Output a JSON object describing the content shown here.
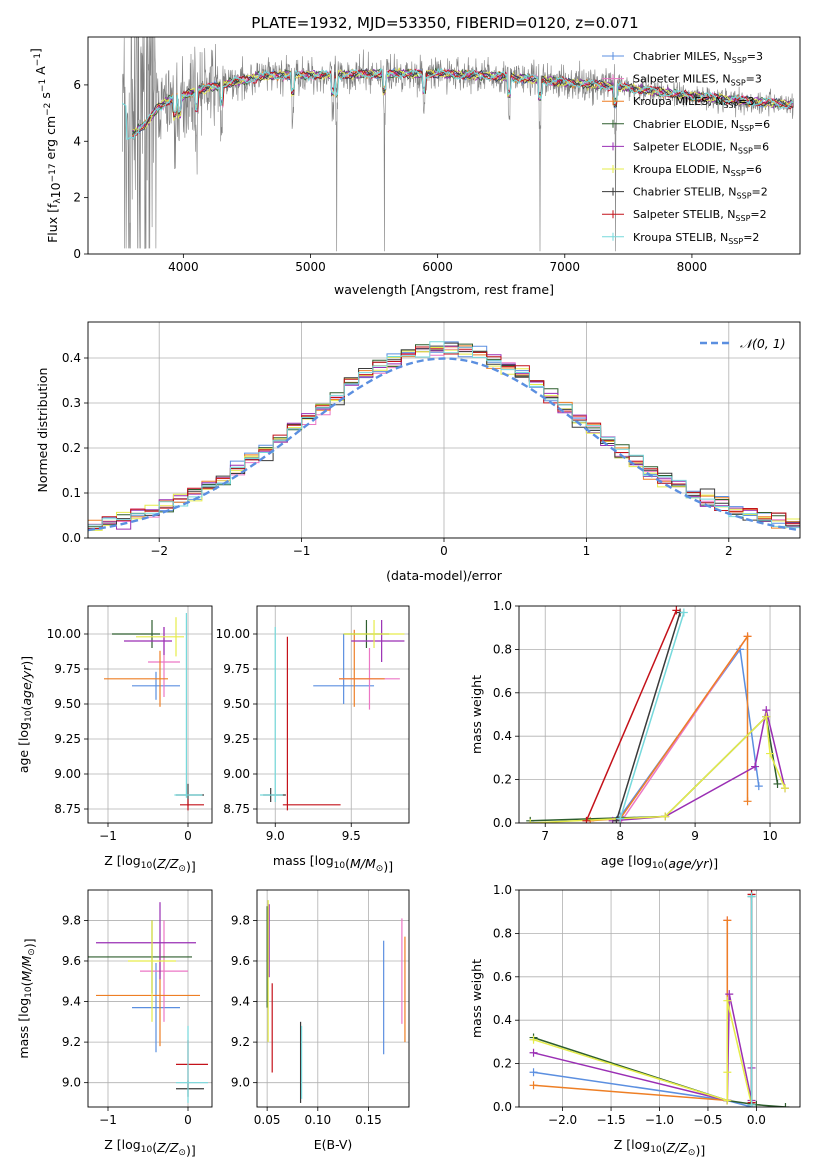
{
  "figure": {
    "title": "PLATE=1932, MJD=53350, FIBERID=0120, z=0.071",
    "models": [
      {
        "label": "Chabrier MILES, N",
        "sub": "SSP",
        "suffix": "=3",
        "color": "#5b8fe0"
      },
      {
        "label": "Salpeter MILES, N",
        "sub": "SSP",
        "suffix": "=3",
        "color": "#ec77c5"
      },
      {
        "label": "Kroupa MILES, N",
        "sub": "SSP",
        "suffix": "=3",
        "color": "#ee7f25"
      },
      {
        "label": "Chabrier ELODIE, N",
        "sub": "SSP",
        "suffix": "=6",
        "color": "#2e5e2e"
      },
      {
        "label": "Salpeter ELODIE, N",
        "sub": "SSP",
        "suffix": "=6",
        "color": "#9a2fb4"
      },
      {
        "label": "Kroupa ELODIE, N",
        "sub": "SSP",
        "suffix": "=6",
        "color": "#e6ec4a"
      },
      {
        "label": "Chabrier STELIB, N",
        "sub": "SSP",
        "suffix": "=2",
        "color": "#3a3a3a"
      },
      {
        "label": "Salpeter STELIB, N",
        "sub": "SSP",
        "suffix": "=2",
        "color": "#c4121a"
      },
      {
        "label": "Kroupa STELIB, N",
        "sub": "SSP",
        "suffix": "=2",
        "color": "#76d9dc"
      }
    ],
    "data_color": "#808080"
  },
  "chart_data": [
    {
      "id": "spectrum",
      "type": "line",
      "xlabel": "wavelength [Angstrom, rest frame]",
      "ylabel": "Flux [f",
      "ylabel_parts": [
        "Flux [f",
        "λ",
        "10",
        "−17",
        " erg cm",
        "−2",
        " s",
        "−1",
        " A",
        "−1",
        "]"
      ],
      "xlim": [
        3250,
        8850
      ],
      "ylim": [
        0,
        7.7
      ],
      "xticks": [
        4000,
        5000,
        6000,
        7000,
        8000
      ],
      "yticks": [
        0,
        2,
        4,
        6
      ],
      "continuum": [
        [
          3550,
          4.1
        ],
        [
          3700,
          4.6
        ],
        [
          3800,
          5.2
        ],
        [
          3900,
          5.5
        ],
        [
          4000,
          5.6
        ],
        [
          4100,
          5.8
        ],
        [
          4200,
          5.9
        ],
        [
          4400,
          6.1
        ],
        [
          4600,
          6.3
        ],
        [
          4800,
          6.35
        ],
        [
          5000,
          6.35
        ],
        [
          5200,
          6.35
        ],
        [
          5500,
          6.4
        ],
        [
          6000,
          6.4
        ],
        [
          6500,
          6.3
        ],
        [
          7000,
          6.1
        ],
        [
          7500,
          5.9
        ],
        [
          8000,
          5.6
        ],
        [
          8500,
          5.4
        ],
        [
          8800,
          5.3
        ]
      ],
      "absorption_lines": [
        3934,
        3969,
        4102,
        4300,
        4861,
        5175,
        5207,
        5581,
        5893,
        6563,
        6806,
        7399
      ]
    },
    {
      "id": "residuals",
      "type": "histogram",
      "xlabel": "(data-model)/error",
      "ylabel": "Normed distribution",
      "xlim": [
        -2.5,
        2.5
      ],
      "ylim": [
        0,
        0.48
      ],
      "xticks": [
        -2,
        -1,
        0,
        1,
        2
      ],
      "yticks": [
        0.0,
        0.1,
        0.2,
        0.3,
        0.4
      ],
      "bin_width": 0.1,
      "legend": "N(0,1)"
    },
    {
      "id": "age-vs-Z",
      "type": "errorbar",
      "xlabel": "Z [log",
      "ylabel": "age  [log",
      "xlim": [
        -1.25,
        0.3
      ],
      "ylim": [
        8.65,
        10.2
      ],
      "xticks": [
        -1,
        0
      ],
      "yticks": [
        8.75,
        9.0,
        9.25,
        9.5,
        9.75,
        10.0
      ],
      "points": [
        {
          "model": 0,
          "x": -0.4,
          "xerr": [
            0.3,
            0.3
          ],
          "y": 9.63,
          "yerr": [
            0.1,
            0.1
          ]
        },
        {
          "model": 1,
          "x": -0.3,
          "xerr": [
            0.2,
            0.2
          ],
          "y": 9.8,
          "yerr": [
            0.25,
            0.25
          ]
        },
        {
          "model": 2,
          "x": -0.35,
          "xerr": [
            0.7,
            0.1
          ],
          "y": 9.68,
          "yerr": [
            0.2,
            0.2
          ]
        },
        {
          "model": 3,
          "x": -0.45,
          "xerr": [
            0.5,
            0.1
          ],
          "y": 10.0,
          "yerr": [
            0.1,
            0.1
          ]
        },
        {
          "model": 4,
          "x": -0.3,
          "xerr": [
            0.5,
            0.1
          ],
          "y": 9.95,
          "yerr": [
            0.1,
            0.1
          ]
        },
        {
          "model": 5,
          "x": -0.15,
          "xerr": [
            0.5,
            0.1
          ],
          "y": 9.98,
          "yerr": [
            0.14,
            0.14
          ]
        },
        {
          "model": 6,
          "x": 0.0,
          "xerr": [
            0.15,
            0.2
          ],
          "y": 8.85,
          "yerr": [
            0.08,
            0.08
          ]
        },
        {
          "model": 7,
          "x": 0.0,
          "xerr": [
            0.1,
            0.2
          ],
          "y": 8.78,
          "yerr": [
            0.04,
            0.04
          ]
        },
        {
          "model": 8,
          "x": -0.02,
          "xerr": [
            0.15,
            0.2
          ],
          "y": 8.85,
          "yerr": [
            0.02,
            1.3
          ]
        }
      ]
    },
    {
      "id": "age-vs-mass",
      "type": "errorbar",
      "xlabel": "mass [log",
      "ylabel": "",
      "xlim": [
        8.88,
        9.88
      ],
      "ylim": [
        8.65,
        10.2
      ],
      "xticks": [
        9.0,
        9.5
      ],
      "yticks": [
        8.75,
        9.0,
        9.25,
        9.5,
        9.75,
        10.0
      ],
      "points": [
        {
          "model": 0,
          "x": 9.45,
          "xerr": [
            0.2,
            0.2
          ],
          "y": 9.63,
          "yerr": [
            0.13,
            0.37
          ]
        },
        {
          "model": 1,
          "x": 9.62,
          "xerr": [
            0.2,
            0.2
          ],
          "y": 9.68,
          "yerr": [
            0.22,
            0.22
          ]
        },
        {
          "model": 2,
          "x": 9.52,
          "xerr": [
            0.1,
            0.2
          ],
          "y": 9.68,
          "yerr": [
            0.2,
            0.35
          ]
        },
        {
          "model": 3,
          "x": 9.6,
          "xerr": [
            0.15,
            0.15
          ],
          "y": 10.0,
          "yerr": [
            0.1,
            0.1
          ]
        },
        {
          "model": 4,
          "x": 9.7,
          "xerr": [
            0.2,
            0.15
          ],
          "y": 9.95,
          "yerr": [
            0.15,
            0.15
          ]
        },
        {
          "model": 5,
          "x": 9.65,
          "xerr": [
            0.2,
            0.2
          ],
          "y": 10.0,
          "yerr": [
            0.1,
            0.1
          ]
        },
        {
          "model": 6,
          "x": 8.97,
          "xerr": [
            0.05,
            0.1
          ],
          "y": 8.85,
          "yerr": [
            0.05,
            0.05
          ]
        },
        {
          "model": 7,
          "x": 9.08,
          "xerr": [
            0.03,
            0.35
          ],
          "y": 8.78,
          "yerr": [
            0.04,
            1.2
          ]
        },
        {
          "model": 8,
          "x": 9.0,
          "xerr": [
            0.1,
            0.05
          ],
          "y": 8.85,
          "yerr": [
            0.05,
            1.2
          ]
        }
      ]
    },
    {
      "id": "weight-vs-age",
      "type": "line",
      "xlabel": "age  [log",
      "ylabel": "mass weight",
      "xlim": [
        6.65,
        10.4
      ],
      "ylim": [
        0,
        1.0
      ],
      "xticks": [
        7,
        8,
        9,
        10
      ],
      "yticks": [
        0.0,
        0.2,
        0.4,
        0.6,
        0.8,
        1.0
      ],
      "series": [
        {
          "model": 0,
          "x": [
            8.0,
            9.6,
            9.85
          ],
          "y": [
            0.03,
            0.8,
            0.17
          ]
        },
        {
          "model": 1,
          "x": [
            8.0,
            9.7
          ],
          "y": [
            0.0,
            0.86
          ]
        },
        {
          "model": 2,
          "x": [
            7.6,
            8.0,
            9.7,
            9.7
          ],
          "y": [
            0.01,
            0.02,
            0.86,
            0.1
          ]
        },
        {
          "model": 3,
          "x": [
            6.8,
            8.6,
            9.95,
            10.1
          ],
          "y": [
            0.01,
            0.03,
            0.49,
            0.18
          ]
        },
        {
          "model": 4,
          "x": [
            7.9,
            8.6,
            9.8,
            9.95,
            10.2
          ],
          "y": [
            0.01,
            0.03,
            0.26,
            0.52,
            0.16
          ]
        },
        {
          "model": 5,
          "x": [
            6.8,
            8.6,
            9.95,
            10.0,
            10.2
          ],
          "y": [
            0.0,
            0.03,
            0.49,
            0.32,
            0.16
          ]
        },
        {
          "model": 6,
          "x": [
            7.95,
            8.8
          ],
          "y": [
            0.01,
            0.97
          ]
        },
        {
          "model": 7,
          "x": [
            7.55,
            8.75
          ],
          "y": [
            0.01,
            0.98
          ]
        },
        {
          "model": 8,
          "x": [
            8.0,
            8.85
          ],
          "y": [
            0.02,
            0.97
          ]
        }
      ]
    },
    {
      "id": "mass-vs-Z",
      "type": "errorbar",
      "xlabel": "Z [log",
      "ylabel": "mass [log",
      "xlim": [
        -1.25,
        0.3
      ],
      "ylim": [
        8.88,
        9.95
      ],
      "xticks": [
        -1,
        0
      ],
      "yticks": [
        9.0,
        9.2,
        9.4,
        9.6,
        9.8
      ],
      "points": [
        {
          "model": 0,
          "x": -0.4,
          "xerr": [
            0.3,
            0.3
          ],
          "y": 9.37,
          "yerr": [
            0.22,
            0.22
          ]
        },
        {
          "model": 1,
          "x": -0.3,
          "xerr": [
            0.3,
            0.3
          ],
          "y": 9.55,
          "yerr": [
            0.25,
            0.25
          ]
        },
        {
          "model": 2,
          "x": -0.35,
          "xerr": [
            0.8,
            0.5
          ],
          "y": 9.43,
          "yerr": [
            0.25,
            0.25
          ]
        },
        {
          "model": 3,
          "x": -0.45,
          "xerr": [
            0.8,
            0.5
          ],
          "y": 9.62,
          "yerr": [
            0.18,
            0.18
          ]
        },
        {
          "model": 4,
          "x": -0.35,
          "xerr": [
            0.8,
            0.45
          ],
          "y": 9.69,
          "yerr": [
            0.18,
            0.2
          ]
        },
        {
          "model": 5,
          "x": -0.45,
          "xerr": [
            0.3,
            0.3
          ],
          "y": 9.6,
          "yerr": [
            0.3,
            0.2
          ]
        },
        {
          "model": 6,
          "x": 0.0,
          "xerr": [
            0.15,
            0.2
          ],
          "y": 8.97,
          "yerr": [
            0.04,
            0.04
          ]
        },
        {
          "model": 7,
          "x": 0.0,
          "xerr": [
            0.15,
            0.25
          ],
          "y": 9.09,
          "yerr": [
            0.12,
            0.12
          ]
        },
        {
          "model": 8,
          "x": 0.0,
          "xerr": [
            0.15,
            0.25
          ],
          "y": 9.0,
          "yerr": [
            0.1,
            0.28
          ]
        }
      ]
    },
    {
      "id": "mass-vs-EBV",
      "type": "errorbar",
      "xlabel": "E(B-V)",
      "ylabel": "",
      "xlim": [
        0.04,
        0.19
      ],
      "ylim": [
        8.88,
        9.95
      ],
      "xticks": [
        0.05,
        0.1,
        0.15
      ],
      "xtick_labels": [
        "0.05",
        "0.10",
        "0.15"
      ],
      "yticks": [
        9.0,
        9.2,
        9.4,
        9.6,
        9.8
      ],
      "points": [
        {
          "model": 0,
          "x": 0.165,
          "xerr": [
            0,
            0
          ],
          "y": 9.42,
          "yerr": [
            0.28,
            0.28
          ]
        },
        {
          "model": 1,
          "x": 0.183,
          "xerr": [
            0,
            0
          ],
          "y": 9.55,
          "yerr": [
            0.26,
            0.26
          ]
        },
        {
          "model": 2,
          "x": 0.186,
          "xerr": [
            0,
            0
          ],
          "y": 9.46,
          "yerr": [
            0.26,
            0.26
          ]
        },
        {
          "model": 3,
          "x": 0.05,
          "xerr": [
            0,
            0
          ],
          "y": 9.62,
          "yerr": [
            0.25,
            0.25
          ]
        },
        {
          "model": 4,
          "x": 0.052,
          "xerr": [
            0,
            0
          ],
          "y": 9.7,
          "yerr": [
            0.18,
            0.18
          ]
        },
        {
          "model": 5,
          "x": 0.051,
          "xerr": [
            0,
            0
          ],
          "y": 9.55,
          "yerr": [
            0.35,
            0.35
          ]
        },
        {
          "model": 6,
          "x": 0.083,
          "xerr": [
            0,
            0
          ],
          "y": 9.1,
          "yerr": [
            0.2,
            0.2
          ]
        },
        {
          "model": 7,
          "x": 0.055,
          "xerr": [
            0,
            0
          ],
          "y": 9.27,
          "yerr": [
            0.22,
            0.22
          ]
        },
        {
          "model": 8,
          "x": 0.084,
          "xerr": [
            0,
            0
          ],
          "y": 9.1,
          "yerr": [
            0.18,
            0.18
          ]
        }
      ]
    },
    {
      "id": "weight-vs-Z",
      "type": "line",
      "xlabel": "Z [log",
      "ylabel": "mass weight",
      "xlim": [
        -2.45,
        0.45
      ],
      "ylim": [
        0,
        1.0
      ],
      "xticks": [
        -2.0,
        -1.5,
        -1.0,
        -0.5,
        0.0
      ],
      "yticks": [
        0.0,
        0.2,
        0.4,
        0.6,
        0.8,
        1.0
      ],
      "series": [
        {
          "model": 0,
          "x": [
            -2.3,
            -0.3,
            -0.3,
            -0.05
          ],
          "y": [
            0.16,
            0.03,
            0.03,
            0.0
          ]
        },
        {
          "model": 1,
          "x": [
            -0.3,
            -0.3
          ],
          "y": [
            0.03,
            0.86
          ]
        },
        {
          "model": 2,
          "x": [
            -2.3,
            -0.3,
            -0.3
          ],
          "y": [
            0.1,
            0.03,
            0.86
          ]
        },
        {
          "model": 3,
          "x": [
            -2.3,
            -0.3,
            0.0,
            0.3
          ],
          "y": [
            0.32,
            0.03,
            0.01,
            0.0
          ]
        },
        {
          "model": 4,
          "x": [
            -2.3,
            -0.3,
            -0.28,
            -0.05,
            -0.05
          ],
          "y": [
            0.25,
            0.03,
            0.52,
            0.03,
            0.18
          ]
        },
        {
          "model": 5,
          "x": [
            -2.3,
            -0.3,
            -0.3,
            -0.3,
            -0.05
          ],
          "y": [
            0.31,
            0.03,
            0.16,
            0.49,
            0.01
          ]
        },
        {
          "model": 6,
          "x": [
            -0.05,
            -0.05
          ],
          "y": [
            0.01,
            0.97
          ]
        },
        {
          "model": 7,
          "x": [
            -0.05,
            -0.05
          ],
          "y": [
            0.02,
            0.98
          ]
        },
        {
          "model": 8,
          "x": [
            -0.05,
            -0.05
          ],
          "y": [
            0.01,
            0.97
          ]
        }
      ]
    }
  ]
}
